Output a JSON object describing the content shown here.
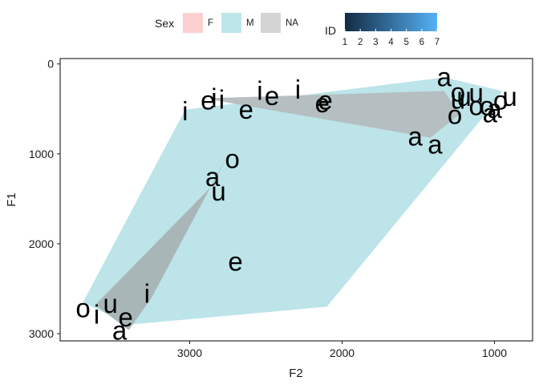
{
  "chart_data": {
    "type": "scatter",
    "title": "",
    "xlabel": "F2",
    "ylabel": "F1",
    "xlim": [
      3850,
      750
    ],
    "ylim": [
      3080,
      -60
    ],
    "x_reversed": true,
    "y_reversed": true,
    "x_ticks": [
      3000,
      2000,
      1000
    ],
    "y_ticks": [
      0,
      1000,
      2000,
      3000
    ],
    "grid": false,
    "legend": {
      "sex_title": "Sex",
      "sex_entries": [
        {
          "label": "F",
          "color": "#fcd0d0"
        },
        {
          "label": "M",
          "color": "#bde6ea"
        },
        {
          "label": "NA",
          "color": "#d4d4d4"
        }
      ],
      "id_title": "ID",
      "id_ticks": [
        "1",
        "2",
        "3",
        "4",
        "5",
        "6",
        "7"
      ],
      "id_gradient": [
        "#132b43",
        "#56b1f7"
      ],
      "placement": "top"
    },
    "hulls": [
      {
        "group": "M",
        "color": "#b8e3e8",
        "points": [
          [
            3700,
            2650
          ],
          [
            3400,
            2900
          ],
          [
            2100,
            2700
          ],
          [
            1050,
            540
          ],
          [
            950,
            300
          ],
          [
            1330,
            150
          ],
          [
            3030,
            510
          ]
        ]
      },
      {
        "group": "NA",
        "color": "#b4bcbe",
        "points": [
          [
            2850,
            380
          ],
          [
            1330,
            300
          ],
          [
            1230,
            560
          ],
          [
            1420,
            820
          ],
          [
            2850,
            400
          ]
        ]
      },
      {
        "group": "NA",
        "color": "#a8b3b5",
        "points": [
          [
            3400,
            2960
          ],
          [
            3250,
            2600
          ],
          [
            2750,
            1010
          ],
          [
            2850,
            1350
          ],
          [
            3620,
            2680
          ]
        ]
      }
    ],
    "points": [
      {
        "label": "a",
        "F2": 1330,
        "F1": 150
      },
      {
        "label": "o",
        "F2": 1240,
        "F1": 320
      },
      {
        "label": "u",
        "F2": 1200,
        "F1": 370
      },
      {
        "label": "u",
        "F2": 1120,
        "F1": 330
      },
      {
        "label": "u",
        "F2": 1240,
        "F1": 400
      },
      {
        "label": "o",
        "F2": 1050,
        "F1": 470
      },
      {
        "label": "a",
        "F2": 1030,
        "F1": 550
      },
      {
        "label": "o",
        "F2": 1120,
        "F1": 470
      },
      {
        "label": "a",
        "F2": 1000,
        "F1": 500
      },
      {
        "label": "o",
        "F2": 960,
        "F1": 410
      },
      {
        "label": "u",
        "F2": 900,
        "F1": 370
      },
      {
        "label": "o",
        "F2": 1260,
        "F1": 570
      },
      {
        "label": "a",
        "F2": 1520,
        "F1": 810
      },
      {
        "label": "a",
        "F2": 1390,
        "F1": 900
      },
      {
        "label": "i",
        "F2": 3030,
        "F1": 530
      },
      {
        "label": "e",
        "F2": 2880,
        "F1": 410
      },
      {
        "label": "i",
        "F2": 2840,
        "F1": 380
      },
      {
        "label": "i",
        "F2": 2790,
        "F1": 400
      },
      {
        "label": "e",
        "F2": 2630,
        "F1": 510
      },
      {
        "label": "i",
        "F2": 2540,
        "F1": 300
      },
      {
        "label": "e",
        "F2": 2460,
        "F1": 360
      },
      {
        "label": "i",
        "F2": 2290,
        "F1": 290
      },
      {
        "label": "e",
        "F2": 2110,
        "F1": 410
      },
      {
        "label": "e",
        "F2": 2130,
        "F1": 440
      },
      {
        "label": "a",
        "F2": 2850,
        "F1": 1260
      },
      {
        "label": "o",
        "F2": 2720,
        "F1": 1060
      },
      {
        "label": "u",
        "F2": 2810,
        "F1": 1420
      },
      {
        "label": "e",
        "F2": 2700,
        "F1": 2200
      },
      {
        "label": "o",
        "F2": 3700,
        "F1": 2720
      },
      {
        "label": "i",
        "F2": 3610,
        "F1": 2790
      },
      {
        "label": "u",
        "F2": 3520,
        "F1": 2670
      },
      {
        "label": "e",
        "F2": 3420,
        "F1": 2820
      },
      {
        "label": "a",
        "F2": 3460,
        "F1": 2970
      },
      {
        "label": "i",
        "F2": 3280,
        "F1": 2560
      }
    ]
  }
}
